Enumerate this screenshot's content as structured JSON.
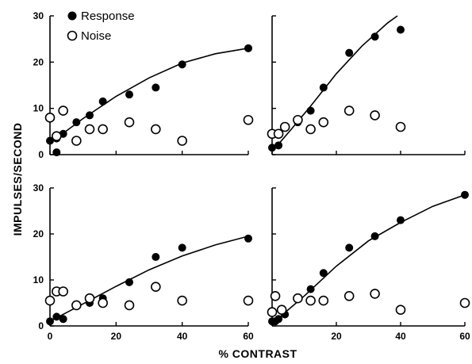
{
  "figure": {
    "ylabel": "IMPULSES/SECOND",
    "xlabel": "% CONTRAST",
    "legend": [
      {
        "label": "Response",
        "marker": "filled-circle"
      },
      {
        "label": "Noise",
        "marker": "open-circle"
      }
    ],
    "legend_position": "top-left of upper-left panel",
    "colors": {
      "ink": "#000000",
      "background": "#ffffff"
    }
  },
  "chart_data": [
    {
      "type": "scatter",
      "panel": "top-left",
      "title": "",
      "xlim": [
        0,
        60
      ],
      "ylim": [
        0,
        30
      ],
      "xticks": [],
      "yticks": [
        "0",
        "10",
        "20",
        "30"
      ],
      "grid": false,
      "series": [
        {
          "name": "Response",
          "marker": "filled",
          "points": [
            [
              0,
              3
            ],
            [
              2,
              0.5
            ],
            [
              2,
              3.5
            ],
            [
              4,
              4.5
            ],
            [
              8,
              7
            ],
            [
              12,
              8.5
            ],
            [
              16,
              11.5
            ],
            [
              24,
              13
            ],
            [
              32,
              14.5
            ],
            [
              40,
              19.5
            ],
            [
              60,
              23
            ]
          ],
          "fit": [
            [
              0,
              2.5
            ],
            [
              10,
              7.8
            ],
            [
              20,
              12.6
            ],
            [
              30,
              16.6
            ],
            [
              40,
              19.8
            ],
            [
              50,
              21.8
            ],
            [
              60,
              23
            ]
          ]
        },
        {
          "name": "Noise",
          "marker": "open",
          "points": [
            [
              0,
              8
            ],
            [
              2,
              4
            ],
            [
              4,
              9.5
            ],
            [
              8,
              3
            ],
            [
              12,
              5.5
            ],
            [
              16,
              5.5
            ],
            [
              24,
              7
            ],
            [
              32,
              5.5
            ],
            [
              40,
              3
            ],
            [
              60,
              7.5
            ]
          ]
        }
      ]
    },
    {
      "type": "scatter",
      "panel": "top-right",
      "title": "",
      "xlim": [
        0,
        60
      ],
      "ylim": [
        0,
        30
      ],
      "xticks": [],
      "yticks": [],
      "grid": false,
      "series": [
        {
          "name": "Response",
          "marker": "filled",
          "points": [
            [
              0,
              1.5
            ],
            [
              2,
              2
            ],
            [
              8,
              7
            ],
            [
              12,
              9.5
            ],
            [
              16,
              14.5
            ],
            [
              24,
              22
            ],
            [
              32,
              25.5
            ],
            [
              40,
              27
            ]
          ],
          "fit": [
            [
              1,
              1.5
            ],
            [
              6,
              5.5
            ],
            [
              12,
              10.5
            ],
            [
              20,
              17.5
            ],
            [
              28,
              23.5
            ],
            [
              36,
              28.5
            ],
            [
              39,
              30
            ]
          ]
        },
        {
          "name": "Noise",
          "marker": "open",
          "points": [
            [
              0,
              4.5
            ],
            [
              2,
              4.5
            ],
            [
              4,
              6
            ],
            [
              8,
              7.5
            ],
            [
              12,
              5.5
            ],
            [
              16,
              7
            ],
            [
              24,
              9.5
            ],
            [
              32,
              8.5
            ],
            [
              40,
              6
            ]
          ]
        }
      ]
    },
    {
      "type": "scatter",
      "panel": "bottom-left",
      "title": "",
      "xlim": [
        0,
        60
      ],
      "ylim": [
        0,
        30
      ],
      "xticks": [
        "0",
        "20",
        "40",
        "60"
      ],
      "yticks": [
        "0",
        "10",
        "20",
        "30"
      ],
      "grid": false,
      "series": [
        {
          "name": "Response",
          "marker": "filled",
          "points": [
            [
              0,
              1
            ],
            [
              2,
              2
            ],
            [
              4,
              1.5
            ],
            [
              12,
              5
            ],
            [
              16,
              6
            ],
            [
              24,
              9.5
            ],
            [
              32,
              15
            ],
            [
              40,
              17
            ],
            [
              60,
              19
            ]
          ],
          "fit": [
            [
              0,
              1
            ],
            [
              10,
              4.8
            ],
            [
              20,
              8.6
            ],
            [
              30,
              12.2
            ],
            [
              40,
              15.2
            ],
            [
              50,
              17.6
            ],
            [
              60,
              19.5
            ]
          ]
        },
        {
          "name": "Noise",
          "marker": "open",
          "points": [
            [
              0,
              5.5
            ],
            [
              2,
              7.5
            ],
            [
              4,
              7.5
            ],
            [
              8,
              4.5
            ],
            [
              12,
              6
            ],
            [
              16,
              5
            ],
            [
              24,
              4.5
            ],
            [
              32,
              8.5
            ],
            [
              40,
              5.5
            ],
            [
              60,
              5.5
            ]
          ]
        }
      ]
    },
    {
      "type": "scatter",
      "panel": "bottom-right",
      "title": "",
      "xlim": [
        0,
        60
      ],
      "ylim": [
        0,
        30
      ],
      "xticks": [
        "",
        "20",
        "40",
        "60"
      ],
      "yticks": [],
      "grid": false,
      "series": [
        {
          "name": "Response",
          "marker": "filled",
          "points": [
            [
              0,
              1
            ],
            [
              1,
              1
            ],
            [
              2,
              1.5
            ],
            [
              4,
              2.5
            ],
            [
              12,
              8
            ],
            [
              16,
              11.5
            ],
            [
              24,
              17
            ],
            [
              32,
              19.5
            ],
            [
              40,
              23
            ],
            [
              60,
              28.5
            ]
          ],
          "fit": [
            [
              0,
              0.5
            ],
            [
              10,
              6.5
            ],
            [
              20,
              13
            ],
            [
              30,
              18.5
            ],
            [
              40,
              22.5
            ],
            [
              50,
              26
            ],
            [
              60,
              28.5
            ]
          ]
        },
        {
          "name": "Noise",
          "marker": "open",
          "points": [
            [
              0,
              3
            ],
            [
              1,
              6.5
            ],
            [
              3,
              3.5
            ],
            [
              8,
              6
            ],
            [
              12,
              5.5
            ],
            [
              16,
              5.5
            ],
            [
              24,
              6.5
            ],
            [
              32,
              7
            ],
            [
              40,
              3.5
            ],
            [
              60,
              5
            ]
          ]
        }
      ]
    }
  ]
}
